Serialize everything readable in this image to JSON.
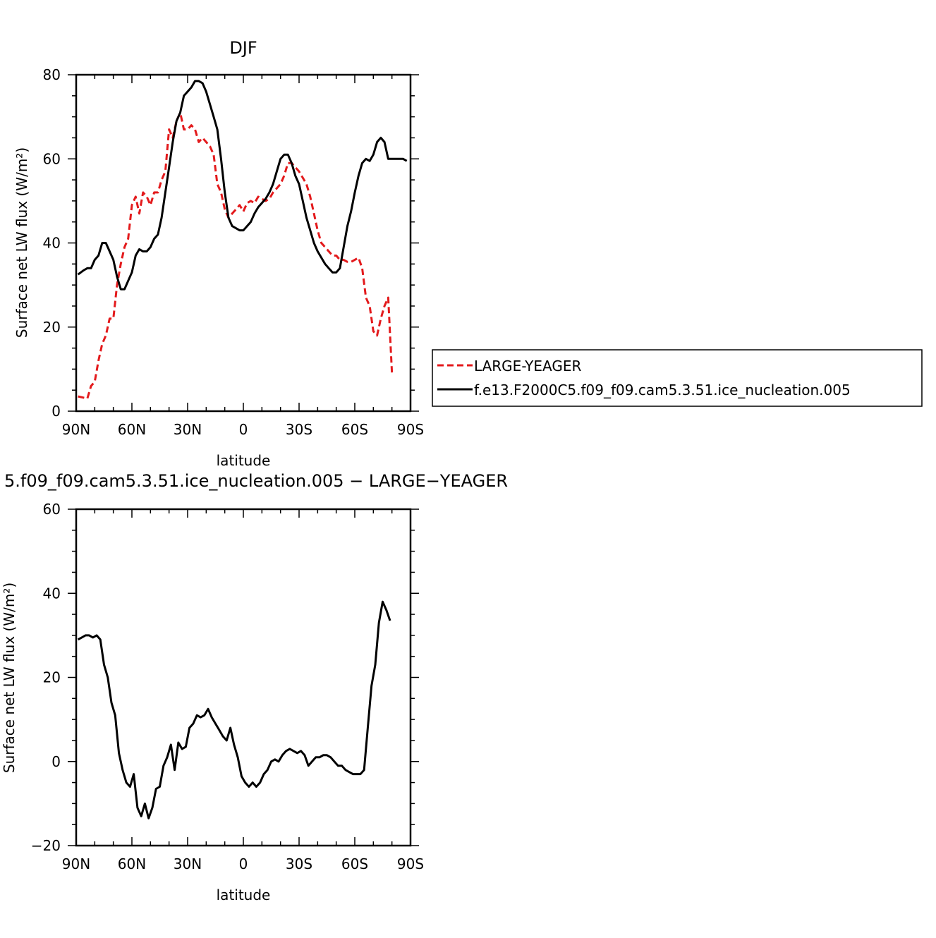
{
  "chart_data": [
    {
      "type": "line",
      "title": "DJF",
      "xlabel": "latitude",
      "ylabel": "Surface net LW flux (W/m²)",
      "xlim": [
        90,
        -90
      ],
      "ylim": [
        0,
        80
      ],
      "x_tick_values": [
        90,
        60,
        30,
        0,
        -30,
        -60,
        -90
      ],
      "x_tick_labels": [
        "90N",
        "60N",
        "30N",
        "0",
        "30S",
        "60S",
        "90S"
      ],
      "y_tick_values": [
        0,
        20,
        40,
        60,
        80
      ],
      "y_tick_labels": [
        "0",
        "20",
        "40",
        "60",
        "80"
      ],
      "legend_position": "right",
      "series": [
        {
          "name": "LARGE-YEAGER",
          "color": "#e31a1c",
          "dash": "dashed",
          "x": [
            89,
            84,
            82,
            80,
            78,
            76,
            74,
            72,
            70,
            68,
            66,
            64,
            62,
            60,
            58,
            56,
            54,
            52,
            50,
            48,
            46,
            44,
            42,
            40,
            38,
            36,
            34,
            32,
            30,
            28,
            26,
            24,
            22,
            20,
            18,
            16,
            14,
            12,
            10,
            8,
            6,
            4,
            2,
            0,
            -2,
            -4,
            -6,
            -8,
            -10,
            -12,
            -14,
            -16,
            -18,
            -20,
            -22,
            -24,
            -26,
            -28,
            -30,
            -32,
            -34,
            -36,
            -38,
            -40,
            -42,
            -44,
            -46,
            -48,
            -50,
            -52,
            -54,
            -56,
            -58,
            -60,
            -62,
            -64,
            -66,
            -68,
            -70,
            -72,
            -74,
            -76,
            -78,
            -80
          ],
          "y": [
            3.5,
            3,
            6,
            7,
            12,
            16,
            18,
            22,
            22,
            30,
            35,
            39,
            41,
            49,
            51,
            47,
            52,
            51,
            49,
            52,
            52,
            55,
            57,
            67,
            65,
            69,
            71,
            67,
            67,
            68,
            67,
            64,
            65,
            64,
            63,
            61,
            54,
            52,
            48,
            46,
            47,
            48,
            49,
            47.5,
            49.5,
            50,
            49.5,
            51,
            50.5,
            50,
            50.5,
            52,
            53,
            54,
            56,
            59,
            59,
            58,
            57,
            55.5,
            54,
            51,
            47,
            43,
            40,
            39,
            38,
            37,
            37,
            36,
            36,
            35.5,
            35.5,
            36,
            36.5,
            34,
            27,
            25,
            19,
            18,
            22,
            25,
            27,
            9
          ]
        },
        {
          "name": "f.e13.F2000C5.f09_f09.cam5.3.51.ice_nucleation.005",
          "color": "#000000",
          "dash": "solid",
          "x": [
            89,
            86,
            84,
            82,
            80,
            78,
            76,
            74,
            72,
            70,
            68,
            66,
            64,
            62,
            60,
            58,
            56,
            54,
            52,
            50,
            48,
            46,
            44,
            42,
            40,
            38,
            36,
            34,
            32,
            30,
            28,
            26,
            24,
            22,
            20,
            18,
            16,
            14,
            12,
            10,
            8,
            6,
            4,
            2,
            0,
            -2,
            -4,
            -6,
            -8,
            -10,
            -12,
            -14,
            -16,
            -18,
            -20,
            -22,
            -24,
            -26,
            -28,
            -30,
            -32,
            -34,
            -36,
            -38,
            -40,
            -42,
            -44,
            -46,
            -48,
            -50,
            -52,
            -54,
            -56,
            -58,
            -60,
            -62,
            -64,
            -66,
            -68,
            -70,
            -72,
            -74,
            -76,
            -78,
            -80,
            -82,
            -84,
            -86,
            -88
          ],
          "y": [
            32.5,
            33.5,
            34,
            34,
            36,
            37,
            40,
            40,
            38,
            36,
            32,
            29,
            29,
            31,
            33,
            37,
            38.5,
            38,
            38,
            39,
            41,
            42,
            46,
            52,
            58,
            64,
            69,
            71,
            75,
            76,
            77,
            78.5,
            78.5,
            78,
            76,
            73,
            70,
            67,
            60,
            52,
            46,
            44,
            43.5,
            43,
            43,
            44,
            45,
            47,
            48.5,
            49.5,
            50.5,
            52,
            54,
            57,
            60,
            61,
            61,
            59,
            56,
            54,
            50,
            46,
            43,
            40,
            38,
            36.5,
            35,
            34,
            33,
            33,
            34,
            39,
            44,
            47.5,
            52,
            56,
            59,
            60,
            59.5,
            61,
            64,
            65,
            64,
            60,
            60,
            60,
            60,
            60,
            59.5
          ]
        }
      ]
    },
    {
      "type": "line",
      "title": "5.f09_f09.cam5.3.51.ice_nucleation.005 − LARGE−YEAGER",
      "xlabel": "latitude",
      "ylabel": "Surface net LW flux (W/m²)",
      "xlim": [
        90,
        -90
      ],
      "ylim": [
        -20,
        60
      ],
      "x_tick_values": [
        90,
        60,
        30,
        0,
        -30,
        -60,
        -90
      ],
      "x_tick_labels": [
        "90N",
        "60N",
        "30N",
        "0",
        "30S",
        "60S",
        "90S"
      ],
      "y_tick_values": [
        -20,
        0,
        20,
        40,
        60
      ],
      "y_tick_labels": [
        "−20",
        "0",
        "20",
        "40",
        "60"
      ],
      "series": [
        {
          "color": "#000000",
          "dash": "solid",
          "x": [
            89,
            87,
            85,
            83,
            81,
            79,
            77,
            75,
            73,
            71,
            69,
            67,
            65,
            63,
            61,
            59,
            57,
            55,
            53,
            51,
            49,
            47,
            45,
            43,
            41,
            39,
            37,
            35,
            33,
            31,
            29,
            27,
            25,
            23,
            21,
            19,
            17,
            15,
            13,
            11,
            9,
            7,
            5,
            3,
            1,
            -1,
            -3,
            -5,
            -7,
            -9,
            -11,
            -13,
            -15,
            -17,
            -19,
            -21,
            -23,
            -25,
            -27,
            -29,
            -31,
            -33,
            -35,
            -37,
            -39,
            -41,
            -43,
            -45,
            -47,
            -49,
            -51,
            -53,
            -55,
            -57,
            -59,
            -61,
            -63,
            -65,
            -67,
            -69,
            -71,
            -73,
            -75,
            -77,
            -79
          ],
          "y": [
            29,
            29.5,
            30,
            30,
            29.5,
            30,
            29,
            23,
            20,
            14,
            11,
            2,
            -2,
            -5,
            -6,
            -3,
            -11,
            -13,
            -10,
            -13.5,
            -11,
            -6.5,
            -6,
            -1,
            1,
            4,
            -2,
            4.5,
            3,
            3.5,
            8,
            9,
            11,
            10.5,
            11,
            12.5,
            10.5,
            9,
            7.5,
            6,
            5,
            8,
            4,
            1,
            -3.5,
            -5,
            -6,
            -5,
            -6,
            -5,
            -3,
            -2,
            0,
            0.5,
            0,
            1.5,
            2.5,
            3,
            2.5,
            2,
            2.5,
            1.5,
            -1,
            0,
            1,
            1,
            1.5,
            1.5,
            1,
            0,
            -1,
            -1,
            -2,
            -2.5,
            -3,
            -3,
            -3,
            -2,
            8,
            18,
            23,
            33,
            38,
            36,
            33.5
          ]
        }
      ]
    }
  ]
}
